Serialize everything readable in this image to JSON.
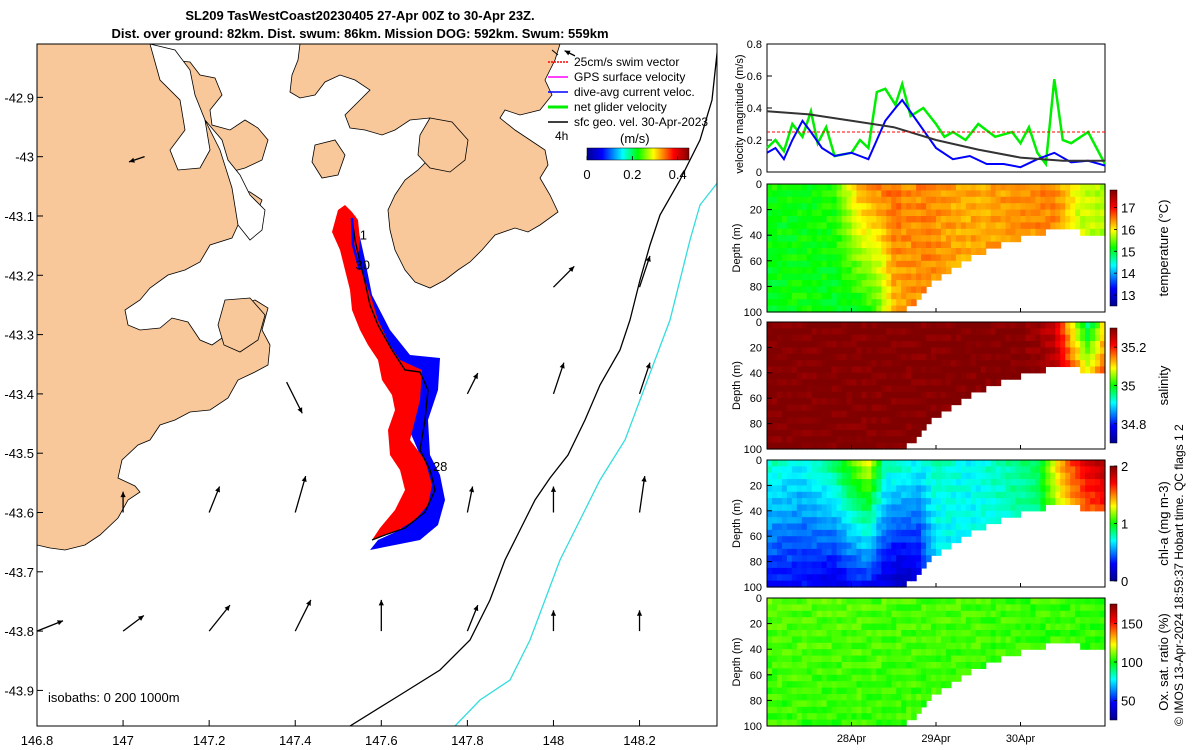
{
  "title_line1": "SL209 TasWestCoast20230405 27-Apr 00Z to 30-Apr 23Z.",
  "title_line2": "Dist. over ground: 82km. Dist. swum: 86km. Mission DOG: 592km. Swum: 559km",
  "colors": {
    "land": "#f8c79a",
    "track_red": "#ff0000",
    "track_blue": "#0000ff",
    "iso200": "#000000",
    "iso1000": "#33dddd",
    "vel_green": "#00ee00"
  },
  "chart_data": [
    {
      "type": "map",
      "x_ticks": [
        "146.8",
        "147",
        "147.2",
        "147.4",
        "147.6",
        "147.8",
        "148",
        "148.2"
      ],
      "y_ticks": [
        "-42.9",
        "-43",
        "-43.1",
        "-43.2",
        "-43.3",
        "-43.4",
        "-43.5",
        "-43.6",
        "-43.7",
        "-43.8",
        "-43.9"
      ],
      "xlim": [
        146.8,
        148.38
      ],
      "ylim": [
        -43.96,
        -42.81
      ],
      "legend": [
        {
          "label": "25cm/s swim vector",
          "color": "#ff0000"
        },
        {
          "label": "GPS surface velocity",
          "color": "#ff00ff"
        },
        {
          "label": "dive-avg current veloc.",
          "color": "#0000ff"
        },
        {
          "label": "net glider velocity",
          "color": "#00ee00"
        },
        {
          "label": "sfc geo. vel. 30-Apr-2023",
          "color": "#000000"
        }
      ],
      "legend_extra": "4h",
      "colorbar": {
        "label": "(m/s)",
        "ticks": [
          "0",
          "0.2",
          "0.4"
        ],
        "range": [
          0,
          0.45
        ]
      },
      "track_labels": [
        {
          "text": "1",
          "lon": 147.55,
          "lat": -43.14
        },
        {
          "text": "30",
          "lon": 147.54,
          "lat": -43.19
        },
        {
          "text": "28",
          "lon": 147.72,
          "lat": -43.53
        }
      ],
      "isobath_label": "isobaths: 0   200  1000m",
      "vectors": [
        {
          "lon": 147.05,
          "lat": -43.0,
          "u": -0.03,
          "v": -0.01
        },
        {
          "lon": 148.05,
          "lat": -42.83,
          "u": -0.02,
          "v": 0.01
        },
        {
          "lon": 148.2,
          "lat": -43.22,
          "u": 0.02,
          "v": 0.06
        },
        {
          "lon": 148.0,
          "lat": -43.22,
          "u": 0.04,
          "v": 0.04
        },
        {
          "lon": 147.38,
          "lat": -43.38,
          "u": 0.03,
          "v": -0.06
        },
        {
          "lon": 147.8,
          "lat": -43.4,
          "u": 0.02,
          "v": 0.04
        },
        {
          "lon": 148.0,
          "lat": -43.4,
          "u": 0.02,
          "v": 0.06
        },
        {
          "lon": 148.2,
          "lat": -43.4,
          "u": 0.02,
          "v": 0.06
        },
        {
          "lon": 147.0,
          "lat": -43.6,
          "u": 0.0,
          "v": 0.04
        },
        {
          "lon": 147.2,
          "lat": -43.6,
          "u": 0.02,
          "v": 0.05
        },
        {
          "lon": 147.4,
          "lat": -43.6,
          "u": 0.02,
          "v": 0.07
        },
        {
          "lon": 147.8,
          "lat": -43.6,
          "u": 0.01,
          "v": 0.05
        },
        {
          "lon": 148.0,
          "lat": -43.6,
          "u": 0.0,
          "v": 0.05
        },
        {
          "lon": 148.2,
          "lat": -43.6,
          "u": 0.01,
          "v": 0.07
        },
        {
          "lon": 146.8,
          "lat": -43.8,
          "u": 0.05,
          "v": 0.02
        },
        {
          "lon": 147.0,
          "lat": -43.8,
          "u": 0.04,
          "v": 0.03
        },
        {
          "lon": 147.2,
          "lat": -43.8,
          "u": 0.04,
          "v": 0.05
        },
        {
          "lon": 147.4,
          "lat": -43.8,
          "u": 0.03,
          "v": 0.06
        },
        {
          "lon": 147.6,
          "lat": -43.8,
          "u": 0.0,
          "v": 0.06
        },
        {
          "lon": 147.8,
          "lat": -43.8,
          "u": 0.02,
          "v": 0.05
        },
        {
          "lon": 148.0,
          "lat": -43.8,
          "u": 0.0,
          "v": 0.04
        },
        {
          "lon": 148.2,
          "lat": -43.8,
          "u": 0.0,
          "v": 0.04
        }
      ]
    },
    {
      "type": "line",
      "ylabel": "velocity magnitude (m/s)",
      "ylim": [
        0,
        0.8
      ],
      "y_ticks": [
        "0",
        "0.2",
        "0.4",
        "0.6",
        "0.8"
      ],
      "x_days": [
        0,
        4
      ],
      "series": [
        {
          "name": "net glider velocity",
          "color": "#00ee00",
          "x": [
            0,
            0.1,
            0.2,
            0.3,
            0.42,
            0.52,
            0.6,
            0.7,
            0.8,
            1.0,
            1.1,
            1.2,
            1.3,
            1.4,
            1.52,
            1.6,
            1.7,
            1.85,
            2.0,
            2.1,
            2.2,
            2.35,
            2.5,
            2.7,
            2.9,
            3.0,
            3.1,
            3.2,
            3.3,
            3.4,
            3.5,
            3.6,
            3.8,
            4.0
          ],
          "y": [
            0.15,
            0.2,
            0.13,
            0.3,
            0.22,
            0.38,
            0.18,
            0.28,
            0.1,
            0.12,
            0.2,
            0.15,
            0.5,
            0.52,
            0.42,
            0.55,
            0.35,
            0.4,
            0.3,
            0.22,
            0.25,
            0.2,
            0.3,
            0.22,
            0.25,
            0.18,
            0.28,
            0.12,
            0.05,
            0.58,
            0.2,
            0.18,
            0.25,
            0.05
          ]
        },
        {
          "name": "dive-avg current veloc.",
          "color": "#0000ff",
          "x": [
            0,
            0.1,
            0.2,
            0.3,
            0.42,
            0.52,
            0.65,
            0.8,
            1.0,
            1.1,
            1.2,
            1.3,
            1.4,
            1.52,
            1.6,
            1.8,
            2.0,
            2.2,
            2.4,
            2.6,
            2.8,
            3.0,
            3.2,
            3.4,
            3.6,
            3.8,
            4.0
          ],
          "y": [
            0.12,
            0.15,
            0.08,
            0.2,
            0.32,
            0.25,
            0.15,
            0.1,
            0.12,
            0.1,
            0.08,
            0.2,
            0.32,
            0.4,
            0.45,
            0.3,
            0.15,
            0.08,
            0.1,
            0.05,
            0.05,
            0.03,
            0.08,
            0.12,
            0.06,
            0.07,
            0.04
          ]
        },
        {
          "name": "sfc geo. vel.",
          "color": "#333333",
          "x": [
            0,
            0.5,
            1.0,
            1.5,
            2.0,
            2.5,
            3.0,
            3.5,
            4.0
          ],
          "y": [
            0.38,
            0.36,
            0.32,
            0.28,
            0.2,
            0.14,
            0.09,
            0.07,
            0.07
          ]
        },
        {
          "name": "25cm/s swim vector",
          "color": "#ff0000",
          "x": [
            0,
            4
          ],
          "y": [
            0.25,
            0.25
          ]
        }
      ]
    },
    {
      "type": "heatmap",
      "ylabel": "Depth (m)",
      "cbar_label": "temperature (°C)",
      "cbar_ticks": [
        "13",
        "14",
        "15",
        "16",
        "17"
      ],
      "cbar_range": [
        12.5,
        17.8
      ],
      "y_ticks": [
        "0",
        "20",
        "40",
        "60",
        "80",
        "100"
      ],
      "ylim": [
        100,
        0
      ],
      "bottom_depth_x": [
        0,
        0.3,
        0.6,
        0.85,
        1.0,
        1.2,
        1.35,
        1.5,
        1.7,
        1.85,
        2.1,
        2.5,
        3.0,
        3.5,
        3.9,
        4.0
      ],
      "bottom_depth_y": [
        100,
        100,
        100,
        100,
        100,
        100,
        100,
        100,
        96,
        84,
        70,
        55,
        42,
        35,
        40,
        42
      ],
      "field_x": [
        0,
        0.4,
        0.8,
        1.1,
        1.3,
        1.5,
        1.7,
        1.9,
        2.2,
        2.6,
        3.0,
        3.4,
        3.7,
        4.0
      ],
      "field_surface": [
        15.2,
        15.1,
        15.3,
        16.3,
        16.5,
        16.6,
        16.4,
        16.5,
        16.3,
        16.3,
        16.4,
        16.5,
        15.8,
        15.7
      ],
      "field_deep": [
        15.0,
        15.2,
        15.0,
        15.1,
        15.3,
        16.2,
        16.4,
        16.4,
        16.3,
        16.3,
        16.4,
        16.4,
        15.8,
        15.6
      ]
    },
    {
      "type": "heatmap",
      "ylabel": "Depth (m)",
      "cbar_label": "salinity",
      "cbar_ticks": [
        "34.8",
        "35",
        "35.2"
      ],
      "cbar_range": [
        34.7,
        35.3
      ],
      "y_ticks": [
        "0",
        "20",
        "40",
        "60",
        "80",
        "100"
      ],
      "ylim": [
        100,
        0
      ],
      "field_x": [
        0,
        1,
        2,
        3,
        3.4,
        3.6,
        3.8,
        4.0
      ],
      "field_surface": [
        35.3,
        35.3,
        35.3,
        35.3,
        35.25,
        35.1,
        34.95,
        35.1
      ],
      "field_deep": [
        35.3,
        35.3,
        35.3,
        35.3,
        35.3,
        35.3,
        35.3,
        35.3
      ]
    },
    {
      "type": "heatmap",
      "ylabel": "Depth (m)",
      "cbar_label": "chl-a (mg m-3)",
      "cbar_ticks": [
        "0",
        "1",
        "2"
      ],
      "cbar_range": [
        0,
        2
      ],
      "y_ticks": [
        "0",
        "20",
        "40",
        "60",
        "80",
        "100"
      ],
      "ylim": [
        100,
        0
      ],
      "field_x": [
        0,
        0.4,
        0.8,
        1.0,
        1.2,
        1.4,
        1.6,
        1.8,
        2.0,
        2.4,
        2.8,
        3.2,
        3.5,
        3.8,
        4.0
      ],
      "field_surface": [
        0.8,
        0.7,
        0.9,
        1.1,
        1.3,
        0.8,
        0.8,
        0.7,
        0.8,
        0.7,
        0.8,
        0.9,
        1.5,
        1.8,
        1.9
      ],
      "field_deep": [
        0.3,
        0.3,
        0.2,
        0.3,
        0.3,
        0.2,
        0.1,
        0.2,
        0.6,
        0.7,
        0.7,
        0.8,
        1.0,
        1.2,
        1.2
      ]
    },
    {
      "type": "heatmap",
      "ylabel": "Depth (m)",
      "cbar_label": "Ox. sat. ratio (%)",
      "cbar_ticks": [
        "50",
        "100",
        "150"
      ],
      "cbar_range": [
        25,
        175
      ],
      "y_ticks": [
        "0",
        "20",
        "40",
        "60",
        "80",
        "100"
      ],
      "ylim": [
        100,
        0
      ],
      "x_ticks": [
        "28Apr",
        "29Apr",
        "30Apr"
      ],
      "x_tick_days": [
        1,
        2,
        3
      ],
      "field_x": [
        0,
        2,
        4
      ],
      "field_surface": [
        108,
        106,
        104
      ],
      "field_deep": [
        104,
        105,
        103
      ]
    }
  ],
  "side_label": "© IMOS 13-Apr-2024 18:59:37 Hobart time. QC flags 1  2"
}
